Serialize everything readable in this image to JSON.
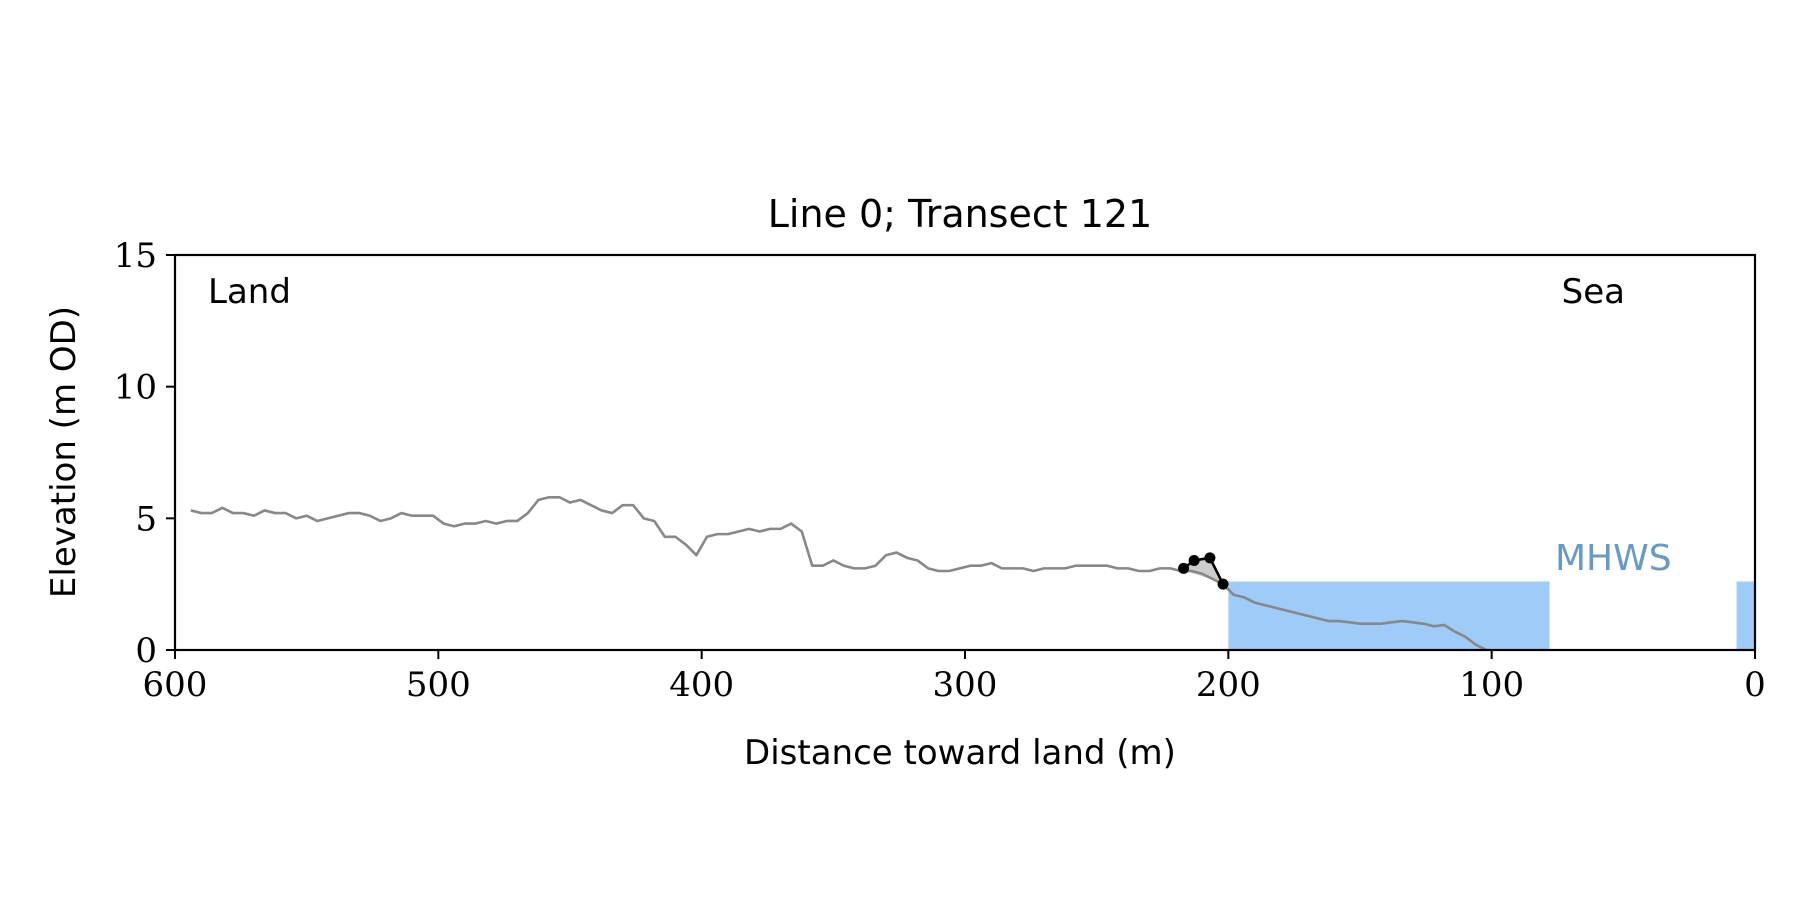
{
  "chart_data": {
    "type": "line",
    "title": "Line 0; Transect 121",
    "xlabel": "Distance toward land (m)",
    "ylabel": "Elevation (m OD)",
    "xlim": [
      600,
      0
    ],
    "ylim": [
      0,
      15
    ],
    "x_ticks": [
      600,
      500,
      400,
      300,
      200,
      100,
      0
    ],
    "y_ticks": [
      0,
      5,
      10,
      15
    ],
    "x_tick_labels": [
      "600",
      "500",
      "400",
      "300",
      "200",
      "100",
      "0"
    ],
    "y_tick_labels": [
      "0",
      "5",
      "10",
      "15"
    ],
    "grid": false,
    "annotations": {
      "land": "Land",
      "sea": "Sea",
      "mhws": "MHWS"
    },
    "mhws_level": 2.6,
    "water_segments": [
      {
        "x_start": 200,
        "x_end": 78
      },
      {
        "x_start": 7,
        "x_end": 0
      }
    ],
    "profile": {
      "color": "#888888",
      "x": [
        594,
        590,
        586,
        582,
        578,
        574,
        570,
        566,
        562,
        558,
        554,
        550,
        546,
        542,
        538,
        534,
        530,
        526,
        522,
        518,
        514,
        510,
        506,
        502,
        498,
        494,
        490,
        486,
        482,
        478,
        474,
        470,
        466,
        462,
        458,
        454,
        450,
        446,
        442,
        438,
        434,
        430,
        426,
        422,
        418,
        414,
        410,
        406,
        402,
        398,
        394,
        390,
        386,
        382,
        378,
        374,
        370,
        366,
        362,
        358,
        354,
        350,
        346,
        342,
        338,
        334,
        330,
        326,
        322,
        318,
        314,
        310,
        306,
        302,
        298,
        294,
        290,
        286,
        282,
        278,
        274,
        270,
        266,
        262,
        258,
        254,
        250,
        246,
        242,
        238,
        234,
        230,
        226,
        222,
        218,
        214,
        210,
        206,
        202,
        198,
        194,
        190,
        186,
        182,
        178,
        174,
        170,
        166,
        162,
        158,
        154,
        150,
        146,
        142,
        138,
        134,
        130,
        126,
        122,
        118,
        114,
        110,
        106,
        104,
        102
      ],
      "y": [
        5.3,
        5.2,
        5.2,
        5.4,
        5.2,
        5.2,
        5.1,
        5.3,
        5.2,
        5.2,
        5.0,
        5.1,
        4.9,
        5.0,
        5.1,
        5.2,
        5.2,
        5.1,
        4.9,
        5.0,
        5.2,
        5.1,
        5.1,
        5.1,
        4.8,
        4.7,
        4.8,
        4.8,
        4.9,
        4.8,
        4.9,
        4.9,
        5.2,
        5.7,
        5.8,
        5.8,
        5.6,
        5.7,
        5.5,
        5.3,
        5.2,
        5.5,
        5.5,
        5.0,
        4.9,
        4.3,
        4.3,
        4.0,
        3.6,
        4.3,
        4.4,
        4.4,
        4.5,
        4.6,
        4.5,
        4.6,
        4.6,
        4.8,
        4.5,
        3.2,
        3.2,
        3.4,
        3.2,
        3.1,
        3.1,
        3.2,
        3.6,
        3.7,
        3.5,
        3.4,
        3.1,
        3.0,
        3.0,
        3.1,
        3.2,
        3.2,
        3.3,
        3.1,
        3.1,
        3.1,
        3.0,
        3.1,
        3.1,
        3.1,
        3.2,
        3.2,
        3.2,
        3.2,
        3.1,
        3.1,
        3.0,
        3.0,
        3.1,
        3.1,
        3.0,
        3.0,
        2.9,
        2.7,
        2.5,
        2.1,
        2.0,
        1.8,
        1.7,
        1.6,
        1.5,
        1.4,
        1.3,
        1.2,
        1.1,
        1.1,
        1.05,
        1.0,
        1.0,
        1.0,
        1.05,
        1.1,
        1.05,
        1.0,
        0.9,
        0.95,
        0.7,
        0.5,
        0.2,
        0.1,
        0.0
      ]
    },
    "feature": {
      "color": "#000000",
      "x": [
        217,
        213,
        207,
        202
      ],
      "y": [
        3.1,
        3.4,
        3.5,
        2.5
      ]
    },
    "shaded": {
      "color": "#cccccc",
      "x": [
        217,
        213,
        207,
        202
      ],
      "upper": [
        3.1,
        3.4,
        3.5,
        2.5
      ],
      "lower": [
        3.0,
        2.9,
        2.7,
        2.5
      ]
    }
  }
}
